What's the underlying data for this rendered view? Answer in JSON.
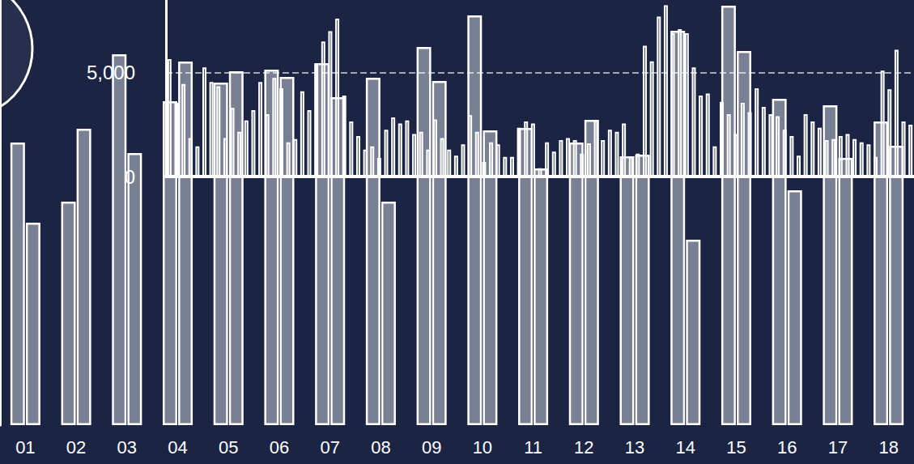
{
  "chart_data": [
    {
      "type": "bar",
      "categories": [
        "01",
        "02",
        "03",
        "04",
        "05",
        "06",
        "07",
        "08",
        "09",
        "10",
        "11",
        "12",
        "13",
        "14",
        "15",
        "16",
        "17",
        "18"
      ],
      "series": [
        {
          "color": "#c8ccd6",
          "values": [
            349,
            276,
            458,
            400,
            423,
            439,
            447,
            429,
            467,
            506,
            367,
            349,
            332,
            487,
            518,
            403,
            395,
            375
          ]
        },
        {
          "color": "#c8ccd6",
          "values": [
            250,
            366,
            336,
            449,
            437,
            430,
            405,
            276,
            425,
            364,
            317,
            377,
            334,
            229,
            462,
            290,
            330,
            345
          ]
        }
      ],
      "ylim": [
        0,
        525
      ],
      "grid": false,
      "tick_labels": "x"
    },
    {
      "type": "bar",
      "categories": [
        null,
        null,
        null,
        null,
        null,
        null,
        null,
        null,
        null,
        null,
        null,
        null,
        null,
        null,
        null,
        null,
        null,
        null,
        null,
        null,
        null,
        null,
        null,
        null,
        null,
        null,
        null,
        null,
        null,
        null,
        null,
        null,
        null,
        null,
        null,
        null,
        null,
        null,
        null,
        null,
        null,
        null,
        null,
        null,
        null,
        null,
        null,
        null,
        null,
        null,
        null,
        null,
        null,
        null,
        null,
        null,
        null,
        null,
        null,
        null,
        null,
        null,
        null,
        null,
        null,
        null,
        null,
        null,
        null,
        null,
        null,
        null,
        null,
        null,
        null,
        null,
        null,
        null,
        null,
        null,
        null,
        null,
        null,
        null,
        null,
        null,
        null,
        null,
        null,
        null,
        null,
        null,
        null,
        null,
        null,
        null,
        null,
        null,
        null,
        null,
        null,
        null,
        null,
        null,
        null,
        null,
        null
      ],
      "values": [
        5650,
        3550,
        4450,
        1850,
        1450,
        5250,
        4550,
        4350,
        1850,
        3300,
        2150,
        2700,
        3200,
        4550,
        3000,
        4750,
        4250,
        1650,
        1800,
        4100,
        3200,
        5450,
        6500,
        7000,
        7600,
        3900,
        2650,
        1950,
        1300,
        1450,
        900,
        2250,
        2850,
        2550,
        2700,
        2050,
        2150,
        1300,
        2750,
        1850,
        1300,
        1000,
        1550,
        2950,
        2150,
        700,
        1650,
        1550,
        950,
        950,
        2350,
        2650,
        2550,
        400,
        1650,
        1200,
        1750,
        1850,
        1750,
        1100,
        1600,
        2700,
        1750,
        2250,
        2150,
        2550,
        950,
        1100,
        6300,
        5550,
        7700,
        8250,
        6900,
        7100,
        6900,
        5250,
        3900,
        4000,
        1450,
        3600,
        3000,
        2050,
        3550,
        3100,
        4250,
        3350,
        3000,
        2900,
        2250,
        1950,
        1000,
        3000,
        2650,
        2350,
        1750,
        1800,
        1950,
        2050,
        1800,
        1650,
        1550,
        950,
        5100,
        4200,
        6100,
        2650,
        2500
      ],
      "color": "#ffffff",
      "ylim": [
        0,
        8500
      ],
      "yticks": [
        0,
        {
          "value": 5000,
          "label": "5,000"
        }
      ],
      "grid": true,
      "tick_labels": "y"
    }
  ]
}
